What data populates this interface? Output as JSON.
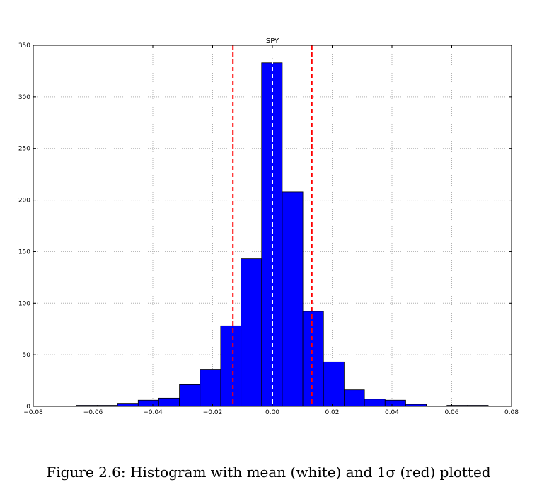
{
  "chart_data": {
    "type": "bar",
    "title": "SPY",
    "xlabel": "",
    "ylabel": "",
    "xlim": [
      -0.08,
      0.08
    ],
    "ylim": [
      0,
      350
    ],
    "grid": true,
    "bar_color": "#0000ff",
    "bins": [
      {
        "x0": -0.0655,
        "x1": -0.0586,
        "count": 1
      },
      {
        "x0": -0.0586,
        "x1": -0.0518,
        "count": 1
      },
      {
        "x0": -0.0518,
        "x1": -0.0449,
        "count": 3
      },
      {
        "x0": -0.0449,
        "x1": -0.038,
        "count": 6
      },
      {
        "x0": -0.038,
        "x1": -0.0311,
        "count": 8
      },
      {
        "x0": -0.0311,
        "x1": -0.0242,
        "count": 21
      },
      {
        "x0": -0.0242,
        "x1": -0.0173,
        "count": 36
      },
      {
        "x0": -0.0173,
        "x1": -0.0105,
        "count": 78
      },
      {
        "x0": -0.0105,
        "x1": -0.0036,
        "count": 143
      },
      {
        "x0": -0.0036,
        "x1": 0.0033,
        "count": 333
      },
      {
        "x0": 0.0033,
        "x1": 0.0102,
        "count": 208
      },
      {
        "x0": 0.0102,
        "x1": 0.0171,
        "count": 92
      },
      {
        "x0": 0.0171,
        "x1": 0.024,
        "count": 43
      },
      {
        "x0": 0.024,
        "x1": 0.0308,
        "count": 16
      },
      {
        "x0": 0.0308,
        "x1": 0.0377,
        "count": 7
      },
      {
        "x0": 0.0377,
        "x1": 0.0446,
        "count": 6
      },
      {
        "x0": 0.0446,
        "x1": 0.0515,
        "count": 2
      },
      {
        "x0": 0.0515,
        "x1": 0.0584,
        "count": 0
      },
      {
        "x0": 0.0584,
        "x1": 0.0653,
        "count": 1
      },
      {
        "x0": 0.0653,
        "x1": 0.0722,
        "count": 1
      }
    ],
    "vlines": [
      {
        "name": "mean",
        "x": 0.0,
        "color": "#ffffff"
      },
      {
        "name": "minus-1-sigma",
        "x": -0.0132,
        "color": "#ff0000"
      },
      {
        "name": "plus-1-sigma",
        "x": 0.0132,
        "color": "#ff0000"
      }
    ],
    "xticks": [
      -0.08,
      -0.06,
      -0.04,
      -0.02,
      0.0,
      0.02,
      0.04,
      0.06,
      0.08
    ],
    "xtick_labels": [
      "−0.08",
      "−0.06",
      "−0.04",
      "−0.02",
      "0.00",
      "0.02",
      "0.04",
      "0.06",
      "0.08"
    ],
    "yticks": [
      0,
      50,
      100,
      150,
      200,
      250,
      300,
      350
    ],
    "ytick_labels": [
      "0",
      "50",
      "100",
      "150",
      "200",
      "250",
      "300",
      "350"
    ]
  },
  "caption": "Figure 2.6: Histogram with mean (white) and 1σ (red) plotted"
}
